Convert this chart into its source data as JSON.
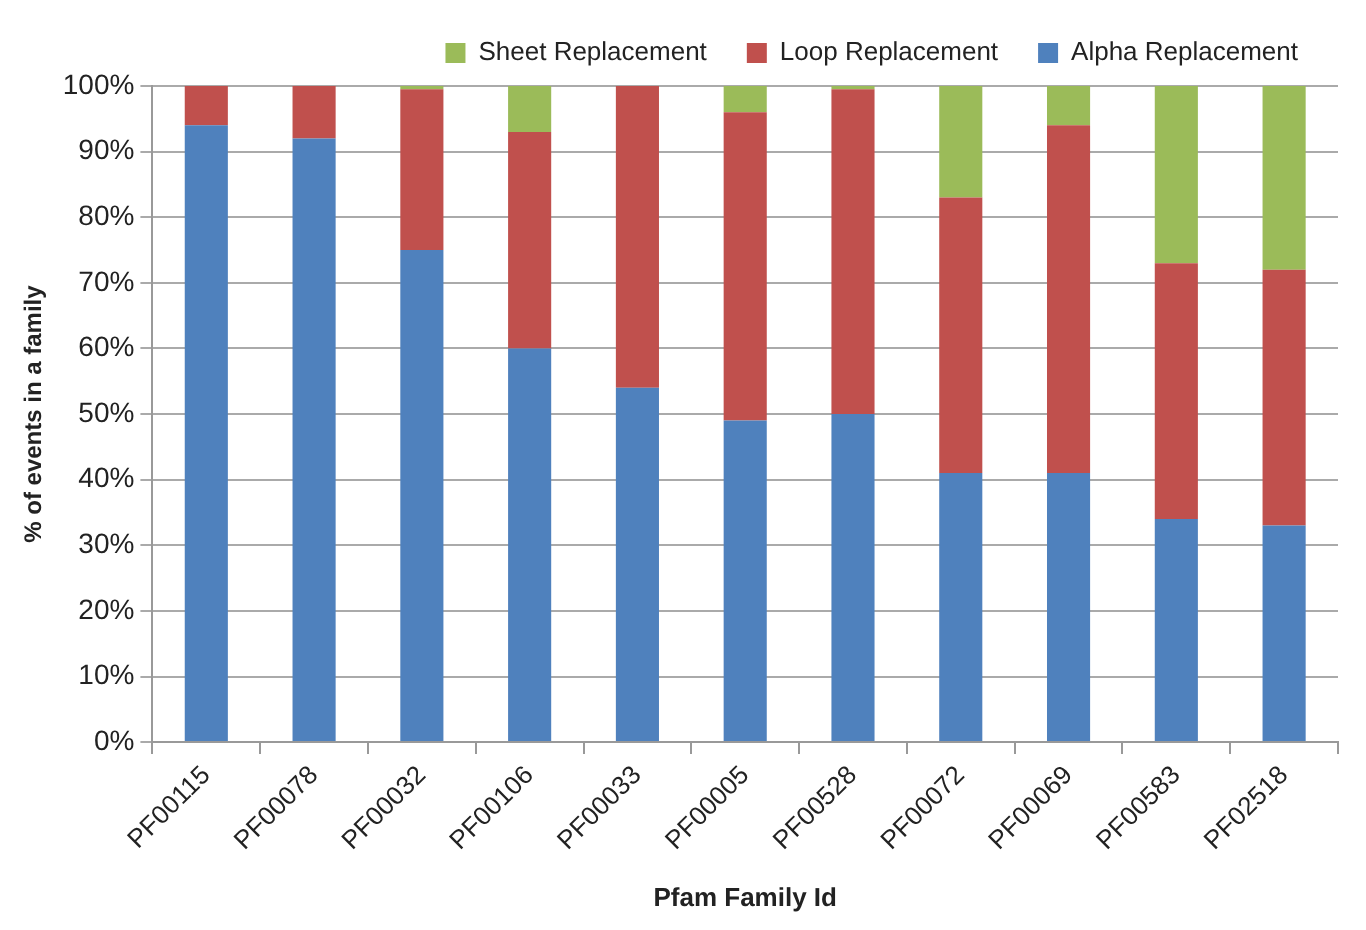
{
  "chart_data": {
    "type": "bar",
    "stacked": true,
    "categories": [
      "PF00115",
      "PF00078",
      "PF00032",
      "PF00106",
      "PF00033",
      "PF00005",
      "PF00528",
      "PF00072",
      "PF00069",
      "PF00583",
      "PF02518"
    ],
    "series": [
      {
        "name": "Alpha Replacement",
        "color": "#4f81bd",
        "values": [
          94,
          92,
          75,
          60,
          54,
          49,
          50,
          41,
          41,
          34,
          33
        ]
      },
      {
        "name": "Loop Replacement",
        "color": "#c0504d",
        "values": [
          6,
          8,
          24.5,
          33,
          46,
          47,
          49.5,
          42,
          53,
          39,
          39
        ]
      },
      {
        "name": "Sheet Replacement",
        "color": "#9bbb59",
        "values": [
          0,
          0,
          0.5,
          7,
          0,
          4,
          0.5,
          17,
          6,
          27,
          28
        ]
      }
    ],
    "ylim": [
      0,
      100
    ],
    "yticks": [
      {
        "value": 0,
        "label": "0%"
      },
      {
        "value": 10,
        "label": "10%"
      },
      {
        "value": 20,
        "label": "20%"
      },
      {
        "value": 30,
        "label": "30%"
      },
      {
        "value": 40,
        "label": "40%"
      },
      {
        "value": 50,
        "label": "50%"
      },
      {
        "value": 60,
        "label": "60%"
      },
      {
        "value": 70,
        "label": "70%"
      },
      {
        "value": 80,
        "label": "80%"
      },
      {
        "value": 90,
        "label": "90%"
      },
      {
        "value": 100,
        "label": "100%"
      }
    ],
    "xlabel": "Pfam Family Id",
    "ylabel": "% of events in a family",
    "grid": "y",
    "legend": "top right"
  }
}
